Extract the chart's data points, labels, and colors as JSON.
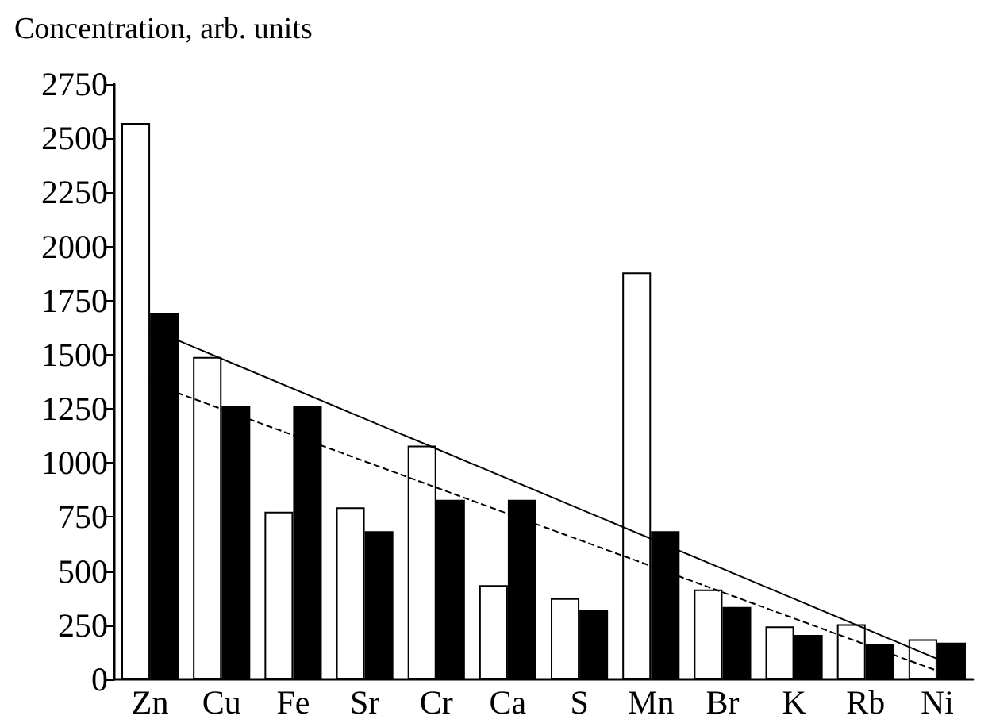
{
  "chart_data": {
    "type": "bar",
    "ylabel": "Concentration, arb. units",
    "categories": [
      "Zn",
      "Cu",
      "Fe",
      "Sr",
      "Cr",
      "Ca",
      "S",
      "Mn",
      "Br",
      "K",
      "Rb",
      "Ni"
    ],
    "series": [
      {
        "color": "#ffffff",
        "values": [
          2570,
          1490,
          775,
          795,
          1080,
          435,
          375,
          1880,
          415,
          245,
          255,
          185
        ]
      },
      {
        "color": "#000000",
        "values": [
          1690,
          1265,
          1265,
          685,
          830,
          830,
          320,
          685,
          335,
          205,
          165,
          170
        ]
      },
      {
        "type": "line",
        "color": "#000000",
        "line_style": "solid",
        "x": [
          "Zn",
          "Ni"
        ],
        "values": [
          1620,
          95
        ]
      },
      {
        "type": "line",
        "color": "#000000",
        "line_style": "dashed",
        "x": [
          "Zn",
          "Ni"
        ],
        "values": [
          1370,
          40
        ]
      }
    ],
    "ylim": [
      0,
      2750
    ],
    "yticks": [
      0,
      250,
      500,
      750,
      1000,
      1250,
      1500,
      1750,
      2000,
      2250,
      2500,
      2750
    ],
    "grid": false
  }
}
